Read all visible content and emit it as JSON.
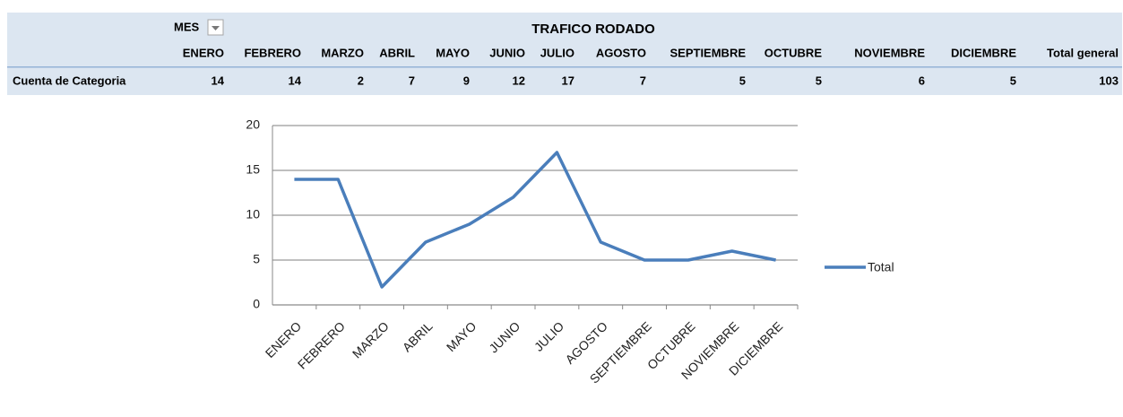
{
  "table": {
    "filter": "MES",
    "title": "TRAFICO RODADO",
    "columns": [
      "ENERO",
      "FEBRERO",
      "MARZO",
      "ABRIL",
      "MAYO",
      "JUNIO",
      "JULIO",
      "AGOSTO",
      "SEPTIEMBRE",
      "OCTUBRE",
      "NOVIEMBRE",
      "DICIEMBRE",
      "Total general"
    ],
    "row_label": "Cuenta de Categoria",
    "values": [
      14,
      14,
      2,
      7,
      9,
      12,
      17,
      7,
      5,
      5,
      6,
      5,
      103
    ]
  },
  "chart_data": {
    "type": "line",
    "categories": [
      "ENERO",
      "FEBRERO",
      "MARZO",
      "ABRIL",
      "MAYO",
      "JUNIO",
      "JULIO",
      "AGOSTO",
      "SEPTIEMBRE",
      "OCTUBRE",
      "NOVIEMBRE",
      "DICIEMBRE"
    ],
    "series": [
      {
        "name": "Total",
        "color": "#4a7ebb",
        "values": [
          14,
          14,
          2,
          7,
          9,
          12,
          17,
          7,
          5,
          5,
          6,
          5
        ]
      }
    ],
    "ylim": [
      0,
      20
    ],
    "yticks": [
      0,
      5,
      10,
      15,
      20
    ],
    "grid": true,
    "legend": "right"
  }
}
